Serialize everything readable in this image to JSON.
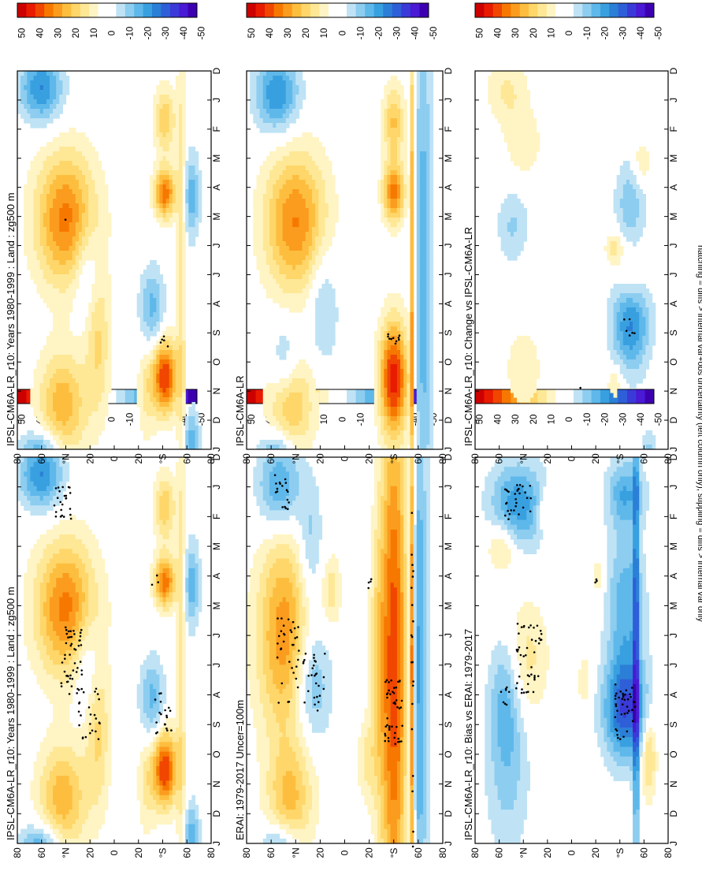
{
  "caption": "hatching = diffs > internal var+obs uncertainty (left column only); stippling = diffs > internal var only",
  "colors": {
    "positive": [
      "#cc0000",
      "#e81a00",
      "#f04600",
      "#f77800",
      "#fb9c1e",
      "#fdbe3f",
      "#fed66a",
      "#fee896",
      "#fff4c4"
    ],
    "zero": "#ffffff",
    "negative": [
      "#bfe3f5",
      "#8dcdf0",
      "#5fb8ea",
      "#39a0e0",
      "#2b7fd6",
      "#2e5fd8",
      "#3a3ad8",
      "#4a1ad4",
      "#3d00b0"
    ],
    "stipple": "#000000",
    "frame": "#000000"
  },
  "chart_data": [
    {
      "id": "model-left",
      "type": "heatmap",
      "title": "IPSL-CM6A-LR_r10: Years 1980-1999 : Land : zg500 m",
      "x_categories": [
        "D",
        "J",
        "F",
        "M",
        "A",
        "M",
        "J",
        "J",
        "A",
        "S",
        "O",
        "N",
        "D",
        "J"
      ],
      "y_ticks": [
        "80",
        "60",
        "°N",
        "20",
        "0",
        "20",
        "°S",
        "60",
        "80"
      ],
      "y_range": [
        -90,
        90
      ],
      "colorbar_ticks": [
        "50",
        "40",
        "30",
        "20",
        "10",
        "0",
        "-10",
        "-20",
        "-30",
        "-40",
        "-50"
      ],
      "colorbar_range": [
        -55,
        55
      ],
      "stippled": true,
      "blobs": [
        {
          "month": 5.1,
          "lat": 45,
          "dm": 1.6,
          "dl": 20,
          "value": 38
        },
        {
          "month": 11.5,
          "lat": 48,
          "dm": 1.3,
          "dl": 16,
          "value": 28
        },
        {
          "month": 0.6,
          "lat": 68,
          "dm": 0.8,
          "dl": 14,
          "value": -30
        },
        {
          "month": 13.4,
          "lat": 68,
          "dm": 0.7,
          "dl": 14,
          "value": -30
        },
        {
          "month": 9.2,
          "lat": 15,
          "dm": 1.8,
          "dl": 8,
          "value": 18
        },
        {
          "month": 6.8,
          "lat": 25,
          "dm": 1.2,
          "dl": 9,
          "value": -14
        },
        {
          "month": 8.2,
          "lat": -35,
          "dm": 1.0,
          "dl": 8,
          "value": -20
        },
        {
          "month": 10.5,
          "lat": -47,
          "dm": 0.9,
          "dl": 8,
          "value": 48
        },
        {
          "month": 4.2,
          "lat": -47,
          "dm": 0.6,
          "dl": 7,
          "value": 40
        },
        {
          "month": 1.7,
          "lat": -47,
          "dm": 0.8,
          "dl": 7,
          "value": 22
        },
        {
          "month": 7.0,
          "lat": -62,
          "dm": 6.5,
          "dl": 3,
          "value": 14
        },
        {
          "month": 4.3,
          "lat": -72,
          "dm": 1.0,
          "dl": 5,
          "value": -22
        },
        {
          "month": 12.8,
          "lat": -72,
          "dm": 0.8,
          "dl": 5,
          "value": -22
        },
        {
          "month": 11.0,
          "lat": -30,
          "dm": 1.2,
          "dl": 6,
          "value": 12
        }
      ],
      "stipples": [
        {
          "month": 1.5,
          "lat": 48,
          "dm": 0.6,
          "dl": 8,
          "count": 24
        },
        {
          "month": 6.8,
          "lat": 40,
          "dm": 1.2,
          "dl": 10,
          "count": 48
        },
        {
          "month": 8.6,
          "lat": 25,
          "dm": 0.9,
          "dl": 12,
          "count": 26
        },
        {
          "month": 8.6,
          "lat": -45,
          "dm": 0.7,
          "dl": 8,
          "count": 20
        },
        {
          "month": 4.1,
          "lat": -38,
          "dm": 0.2,
          "dl": 3,
          "count": 3
        }
      ]
    },
    {
      "id": "model-right",
      "type": "heatmap",
      "title": "IPSL-CM6A-LR_r10: Years 1980-1999 : Land : zg500 m",
      "x_categories": [
        "D",
        "J",
        "F",
        "M",
        "A",
        "M",
        "J",
        "J",
        "A",
        "S",
        "O",
        "N",
        "D",
        "J"
      ],
      "y_ticks": [
        "80",
        "60",
        "°N",
        "20",
        "0",
        "20",
        "°S",
        "60",
        "80"
      ],
      "y_range": [
        -90,
        90
      ],
      "colorbar_ticks": [
        "50",
        "40",
        "30",
        "20",
        "10",
        "0",
        "-10",
        "-20",
        "-30",
        "-40",
        "-50"
      ],
      "colorbar_range": [
        -55,
        55
      ],
      "stippled": true,
      "blobs": [
        {
          "month": 5.1,
          "lat": 45,
          "dm": 1.6,
          "dl": 20,
          "value": 38
        },
        {
          "month": 11.5,
          "lat": 48,
          "dm": 1.3,
          "dl": 16,
          "value": 28
        },
        {
          "month": 0.6,
          "lat": 68,
          "dm": 0.8,
          "dl": 14,
          "value": -30
        },
        {
          "month": 13.4,
          "lat": 68,
          "dm": 0.7,
          "dl": 14,
          "value": -30
        },
        {
          "month": 9.2,
          "lat": 15,
          "dm": 1.8,
          "dl": 8,
          "value": 18
        },
        {
          "month": 6.8,
          "lat": 25,
          "dm": 1.2,
          "dl": 9,
          "value": -14
        },
        {
          "month": 8.2,
          "lat": -35,
          "dm": 1.0,
          "dl": 8,
          "value": -20
        },
        {
          "month": 10.5,
          "lat": -47,
          "dm": 0.9,
          "dl": 8,
          "value": 48
        },
        {
          "month": 4.2,
          "lat": -47,
          "dm": 0.6,
          "dl": 7,
          "value": 40
        },
        {
          "month": 1.7,
          "lat": -47,
          "dm": 0.8,
          "dl": 7,
          "value": 22
        },
        {
          "month": 7.0,
          "lat": -62,
          "dm": 6.5,
          "dl": 3,
          "value": 14
        },
        {
          "month": 4.3,
          "lat": -72,
          "dm": 1.0,
          "dl": 5,
          "value": -22
        },
        {
          "month": 12.8,
          "lat": -72,
          "dm": 0.8,
          "dl": 5,
          "value": -22
        },
        {
          "month": 11.0,
          "lat": -30,
          "dm": 1.2,
          "dl": 6,
          "value": 12
        }
      ],
      "stipples": [
        {
          "month": 5.1,
          "lat": 45,
          "dm": 0.05,
          "dl": 1,
          "count": 1
        },
        {
          "month": 9.3,
          "lat": -45,
          "dm": 0.2,
          "dl": 5,
          "count": 5
        }
      ]
    },
    {
      "id": "obs-left",
      "type": "heatmap",
      "title": "ERAI: 1979-2017 Uncer=100m",
      "x_categories": [
        "D",
        "J",
        "F",
        "M",
        "A",
        "M",
        "J",
        "J",
        "A",
        "S",
        "O",
        "N",
        "D",
        "J"
      ],
      "y_ticks": [
        "80",
        "60",
        "°N",
        "20",
        "0",
        "20",
        "°S",
        "60",
        "80"
      ],
      "y_range": [
        -90,
        90
      ],
      "colorbar_ticks": [
        "50",
        "40",
        "30",
        "20",
        "10",
        "0",
        "-10",
        "-20",
        "-30",
        "-40",
        "-50"
      ],
      "colorbar_range": [
        -55,
        55
      ],
      "stippled": true,
      "blobs": [
        {
          "month": 6.0,
          "lat": 55,
          "dm": 2.4,
          "dl": 18,
          "value": 34
        },
        {
          "month": 11.5,
          "lat": 50,
          "dm": 1.3,
          "dl": 15,
          "value": 24
        },
        {
          "month": 1.0,
          "lat": 60,
          "dm": 1.0,
          "dl": 14,
          "value": -26
        },
        {
          "month": 13.4,
          "lat": 60,
          "dm": 0.7,
          "dl": 12,
          "value": -26
        },
        {
          "month": 7.6,
          "lat": 30,
          "dm": 1.4,
          "dl": 12,
          "value": -22
        },
        {
          "month": 3.0,
          "lat": 32,
          "dm": 1.5,
          "dl": 8,
          "value": -16
        },
        {
          "month": 4.5,
          "lat": 12,
          "dm": 0.8,
          "dl": 6,
          "value": 14
        },
        {
          "month": 7.0,
          "lat": -45,
          "dm": 6.5,
          "dl": 9,
          "value": 46
        },
        {
          "month": 7.0,
          "lat": -30,
          "dm": 3.0,
          "dl": 5,
          "value": 14
        },
        {
          "month": 7.0,
          "lat": -68,
          "dm": 6.5,
          "dl": 6,
          "value": -26
        },
        {
          "month": 7.0,
          "lat": -62,
          "dm": 6.5,
          "dl": 1.5,
          "value": 44
        },
        {
          "month": 10.2,
          "lat": -20,
          "dm": 1.0,
          "dl": 6,
          "value": 12
        }
      ],
      "stipples": [
        {
          "month": 1.2,
          "lat": 58,
          "dm": 0.6,
          "dl": 8,
          "count": 18
        },
        {
          "month": 6.8,
          "lat": 52,
          "dm": 1.5,
          "dl": 10,
          "count": 34
        },
        {
          "month": 7.6,
          "lat": 28,
          "dm": 1.0,
          "dl": 10,
          "count": 28
        },
        {
          "month": 8.6,
          "lat": -45,
          "dm": 1.1,
          "dl": 8,
          "count": 46
        },
        {
          "month": 7.0,
          "lat": -62,
          "dm": 6.5,
          "dl": 1,
          "count": 20
        },
        {
          "month": 4.2,
          "lat": -25,
          "dm": 0.3,
          "dl": 4,
          "count": 4
        }
      ]
    },
    {
      "id": "obs-right",
      "type": "heatmap",
      "title": "IPSL-CM6A-LR",
      "x_categories": [
        "D",
        "J",
        "F",
        "M",
        "A",
        "M",
        "J",
        "J",
        "A",
        "S",
        "O",
        "N",
        "D",
        "J"
      ],
      "y_ticks": [
        "80",
        "60",
        "°N",
        "20",
        "0",
        "20",
        "°S",
        "60",
        "80"
      ],
      "y_range": [
        -90,
        90
      ],
      "colorbar_ticks": [
        "50",
        "40",
        "30",
        "20",
        "10",
        "0",
        "-10",
        "-20",
        "-30",
        "-40",
        "-50"
      ],
      "colorbar_range": [
        -55,
        55
      ],
      "stippled": true,
      "blobs": [
        {
          "month": 5.2,
          "lat": 45,
          "dm": 1.7,
          "dl": 20,
          "value": 36
        },
        {
          "month": 11.4,
          "lat": 50,
          "dm": 1.3,
          "dl": 15,
          "value": 26
        },
        {
          "month": 0.8,
          "lat": 62,
          "dm": 0.9,
          "dl": 14,
          "value": -30
        },
        {
          "month": 13.4,
          "lat": 62,
          "dm": 0.7,
          "dl": 12,
          "value": -28
        },
        {
          "month": 8.0,
          "lat": 20,
          "dm": 1.5,
          "dl": 10,
          "value": -14
        },
        {
          "month": 10.0,
          "lat": 55,
          "dm": 1.0,
          "dl": 10,
          "value": -18
        },
        {
          "month": 10.6,
          "lat": -45,
          "dm": 1.4,
          "dl": 9,
          "value": 52
        },
        {
          "month": 4.2,
          "lat": -45,
          "dm": 0.7,
          "dl": 7,
          "value": 38
        },
        {
          "month": 1.8,
          "lat": -45,
          "dm": 0.9,
          "dl": 7,
          "value": 24
        },
        {
          "month": 7.0,
          "lat": -72,
          "dm": 6.5,
          "dl": 6,
          "value": -22
        },
        {
          "month": 7.0,
          "lat": -62,
          "dm": 6.5,
          "dl": 1.5,
          "value": 34
        }
      ],
      "stipples": [
        {
          "month": 9.3,
          "lat": -45,
          "dm": 0.3,
          "dl": 6,
          "count": 10
        }
      ]
    },
    {
      "id": "bias-left",
      "type": "heatmap",
      "title": "IPSL-CM6A-LR_r10: Bias vs ERAI: 1979-2017",
      "x_categories": [
        "D",
        "J",
        "F",
        "M",
        "A",
        "M",
        "J",
        "J",
        "A",
        "S",
        "O",
        "N",
        "D",
        "J"
      ],
      "y_ticks": [
        "80",
        "60",
        "°N",
        "20",
        "0",
        "20",
        "°S",
        "60",
        "80"
      ],
      "y_range": [
        -90,
        90
      ],
      "colorbar_ticks": [
        "50",
        "40",
        "30",
        "20",
        "10",
        "0",
        "-10",
        "-20",
        "-30",
        "-40",
        "-50"
      ],
      "colorbar_range": [
        -55,
        55
      ],
      "stippled": true,
      "blobs": [
        {
          "month": 1.6,
          "lat": 50,
          "dm": 1.0,
          "dl": 18,
          "value": -28
        },
        {
          "month": 3.0,
          "lat": 65,
          "dm": 0.6,
          "dl": 10,
          "value": 16
        },
        {
          "month": 6.8,
          "lat": 42,
          "dm": 1.4,
          "dl": 14,
          "value": 14
        },
        {
          "month": 8.0,
          "lat": 62,
          "dm": 1.4,
          "dl": 10,
          "value": -16
        },
        {
          "month": 10.5,
          "lat": 60,
          "dm": 2.0,
          "dl": 14,
          "value": -14
        },
        {
          "month": 1.8,
          "lat": 25,
          "dm": 0.5,
          "dl": 5,
          "value": 14
        },
        {
          "month": 8.5,
          "lat": -50,
          "dm": 1.2,
          "dl": 14,
          "value": -40
        },
        {
          "month": 5.0,
          "lat": -50,
          "dm": 1.8,
          "dl": 12,
          "value": -22
        },
        {
          "month": 1.2,
          "lat": -50,
          "dm": 0.8,
          "dl": 12,
          "value": -22
        },
        {
          "month": 7.0,
          "lat": -60,
          "dm": 6.5,
          "dl": 2,
          "value": -30
        },
        {
          "month": 10.0,
          "lat": -72,
          "dm": 1.0,
          "dl": 5,
          "value": 22
        },
        {
          "month": 4.0,
          "lat": -25,
          "dm": 0.4,
          "dl": 4,
          "value": 12
        },
        {
          "month": 7.5,
          "lat": -12,
          "dm": 0.6,
          "dl": 5,
          "value": 10
        }
      ],
      "stipples": [
        {
          "month": 1.5,
          "lat": 50,
          "dm": 0.6,
          "dl": 12,
          "count": 30
        },
        {
          "month": 6.8,
          "lat": 40,
          "dm": 1.2,
          "dl": 12,
          "count": 46
        },
        {
          "month": 8.0,
          "lat": 62,
          "dm": 0.4,
          "dl": 4,
          "count": 8
        },
        {
          "month": 8.5,
          "lat": -50,
          "dm": 1.0,
          "dl": 10,
          "count": 40
        },
        {
          "month": 4.3,
          "lat": -25,
          "dm": 0.2,
          "dl": 3,
          "count": 3
        }
      ]
    },
    {
      "id": "change-right",
      "type": "heatmap",
      "title": "IPSL-CM6A-LR_r10: Change vs IPSL-CM6A-LR",
      "x_categories": [
        "D",
        "J",
        "F",
        "M",
        "A",
        "M",
        "J",
        "J",
        "A",
        "S",
        "O",
        "N",
        "D",
        "J"
      ],
      "y_ticks": [
        "80",
        "60",
        "°N",
        "20",
        "0",
        "20",
        "°S",
        "60",
        "80"
      ],
      "y_range": [
        -90,
        90
      ],
      "colorbar_ticks": [
        "50",
        "40",
        "30",
        "20",
        "10",
        "0",
        "-10",
        "-20",
        "-30",
        "-40",
        "-50"
      ],
      "colorbar_range": [
        -55,
        55
      ],
      "stippled": true,
      "blobs": [
        {
          "month": 0.7,
          "lat": 60,
          "dm": 0.8,
          "dl": 14,
          "value": 12
        },
        {
          "month": 2.5,
          "lat": 45,
          "dm": 0.8,
          "dl": 12,
          "value": 10
        },
        {
          "month": 5.3,
          "lat": 55,
          "dm": 0.9,
          "dl": 10,
          "value": -12
        },
        {
          "month": 10.2,
          "lat": 45,
          "dm": 1.0,
          "dl": 12,
          "value": 10
        },
        {
          "month": 8.5,
          "lat": -55,
          "dm": 1.2,
          "dl": 12,
          "value": -34
        },
        {
          "month": 7.3,
          "lat": -55,
          "dm": 0.8,
          "dl": 10,
          "value": 16
        },
        {
          "month": 4.5,
          "lat": -55,
          "dm": 1.0,
          "dl": 10,
          "value": -16
        },
        {
          "month": 6.1,
          "lat": -40,
          "dm": 0.4,
          "dl": 6,
          "value": 16
        },
        {
          "month": 3.2,
          "lat": -65,
          "dm": 0.6,
          "dl": 6,
          "value": 12
        },
        {
          "month": 10.7,
          "lat": -40,
          "dm": 0.4,
          "dl": 5,
          "value": 12
        },
        {
          "month": 13.3,
          "lat": -72,
          "dm": 0.7,
          "dl": 5,
          "value": -14
        }
      ],
      "stipples": [
        {
          "month": 8.8,
          "lat": -55,
          "dm": 0.3,
          "dl": 6,
          "count": 6
        },
        {
          "month": 10.9,
          "lat": -8,
          "dm": 0.05,
          "dl": 1,
          "count": 1
        }
      ]
    }
  ]
}
